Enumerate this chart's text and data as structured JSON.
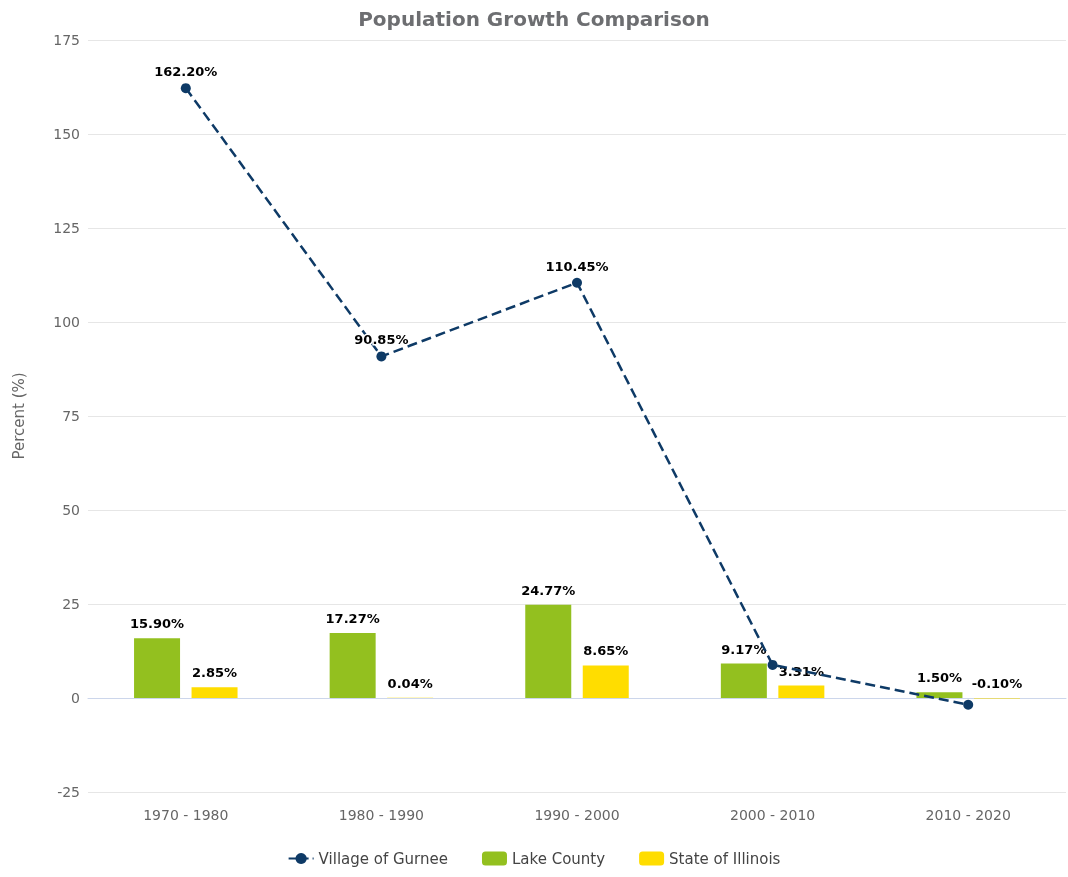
{
  "chart_data": {
    "type": "bar",
    "title": "Population Growth Comparison",
    "ylabel": "Percent (%)",
    "categories": [
      "1970 - 1980",
      "1980 - 1990",
      "1990 - 2000",
      "2000 - 2010",
      "2010 - 2020"
    ],
    "series": [
      {
        "name": "Village of Gurnee",
        "type": "line",
        "color": "#0e3a66",
        "values": [
          162.2,
          90.85,
          110.45,
          8.8,
          -1.8
        ],
        "value_labels": [
          "162.20%",
          "90.85%",
          "110.45%",
          null,
          null
        ]
      },
      {
        "name": "Lake County",
        "color": "#93c01f",
        "values": [
          15.9,
          17.27,
          24.77,
          9.17,
          1.5
        ],
        "value_labels": [
          "15.90%",
          "17.27%",
          "24.77%",
          "9.17%",
          "1.50%"
        ]
      },
      {
        "name": "State of Illinois",
        "color": "#ffdd00",
        "values": [
          2.85,
          0.04,
          8.65,
          3.31,
          -0.1
        ],
        "value_labels": [
          "2.85%",
          "0.04%",
          "8.65%",
          "3.31%",
          "-0.10%"
        ]
      }
    ],
    "ylim": [
      -25,
      175
    ],
    "yticks": [
      -25,
      0,
      25,
      50,
      75,
      100,
      125,
      150,
      175
    ],
    "grid": "y",
    "legend": "bottom",
    "marker": "circle",
    "line_style": "dashed"
  }
}
